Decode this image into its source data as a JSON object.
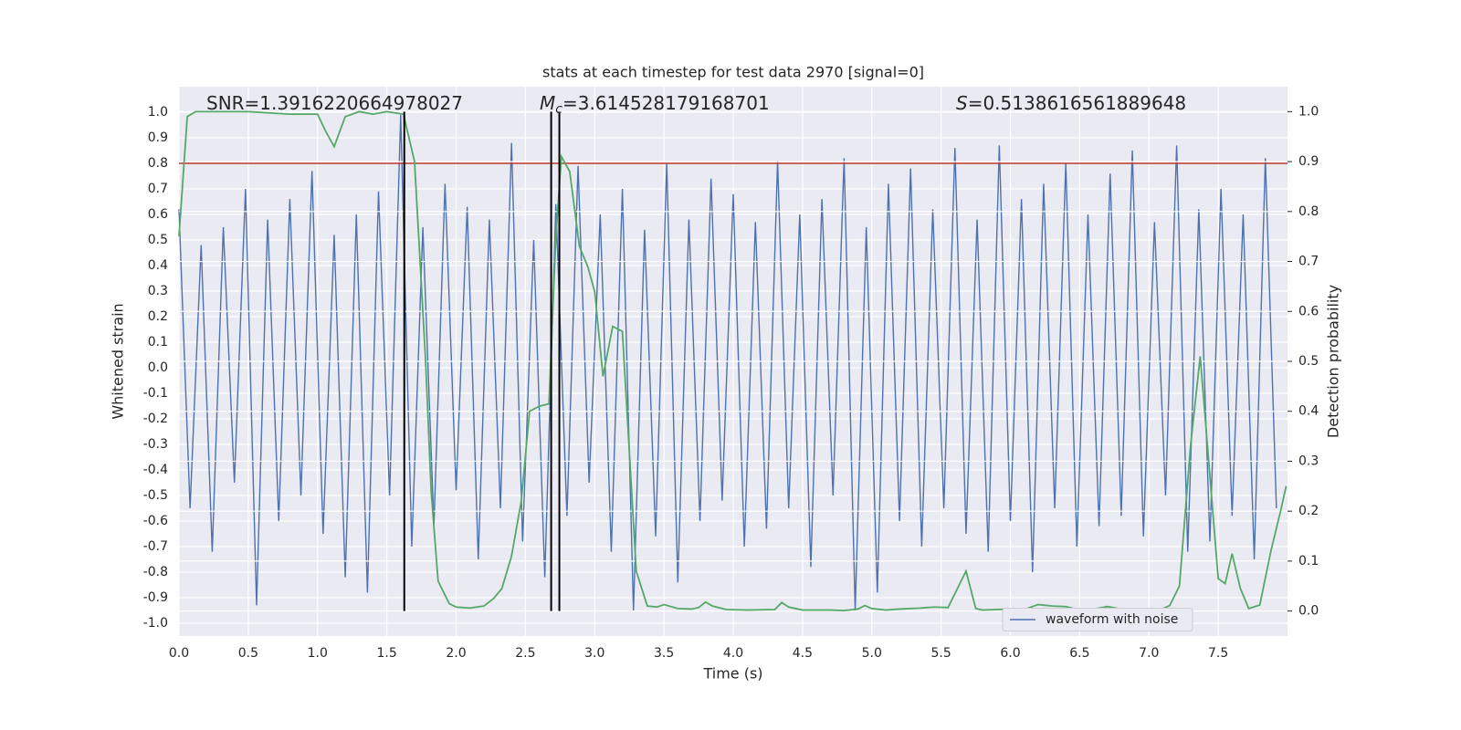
{
  "chart_data": {
    "type": "line",
    "title": "stats at each timestep for test data 2970 [signal=0]",
    "x_label": "Time (s)",
    "y_label": "Whitened strain",
    "y2_label": "Detection probability",
    "xlim": [
      0,
      8
    ],
    "ylim": [
      -1.05,
      1.1
    ],
    "y2lim": [
      -0.05,
      1.05
    ],
    "xticks": [
      {
        "value": 0,
        "label": "0.0"
      },
      0.5,
      {
        "value": 1,
        "label": "1.0"
      },
      1.5,
      {
        "value": 2,
        "label": "2.0"
      },
      2.5,
      {
        "value": 3,
        "label": "3.0"
      },
      3.5,
      {
        "value": 4,
        "label": "4.0"
      },
      4.5,
      {
        "value": 5,
        "label": "5.0"
      },
      5.5,
      {
        "value": 6,
        "label": "6.0"
      },
      6.5,
      {
        "value": 7,
        "label": "7.0"
      },
      7.5
    ],
    "yticks": [
      {
        "value": -1,
        "label": "-1.0"
      },
      -0.9,
      -0.8,
      -0.7,
      -0.6,
      -0.5,
      -0.4,
      -0.3,
      -0.2,
      -0.1,
      {
        "value": 0,
        "label": "0.0"
      },
      0.1,
      0.2,
      0.3,
      0.4,
      0.5,
      0.6,
      0.7,
      0.8,
      0.9,
      {
        "value": 1,
        "label": "1.0"
      }
    ],
    "y2ticks": [
      {
        "value": 0,
        "label": "0.0"
      },
      0.1,
      0.2,
      0.3,
      0.4,
      0.5,
      0.6,
      0.7,
      0.8,
      0.9,
      {
        "value": 1,
        "label": "1.0"
      }
    ],
    "grid": true,
    "legend": "lower right",
    "series": [
      {
        "name": "waveform with noise",
        "color": "#4c72b0",
        "x": [
          0,
          0.08,
          0.16,
          0.24,
          0.32,
          0.4,
          0.48,
          0.56,
          0.64,
          0.72,
          0.8,
          0.88,
          0.96,
          1.04,
          1.12,
          1.2,
          1.28,
          1.36,
          1.44,
          1.52,
          1.6,
          1.68,
          1.76,
          1.84,
          1.92,
          2,
          2.08,
          2.16,
          2.24,
          2.32,
          2.4,
          2.48,
          2.56,
          2.64,
          2.72,
          2.8,
          2.88,
          2.96,
          3.04,
          3.12,
          3.2,
          3.28,
          3.36,
          3.44,
          3.52,
          3.6,
          3.68,
          3.76,
          3.84,
          3.92,
          4,
          4.08,
          4.16,
          4.24,
          4.32,
          4.4,
          4.48,
          4.56,
          4.64,
          4.72,
          4.8,
          4.88,
          4.96,
          5.04,
          5.12,
          5.2,
          5.28,
          5.36,
          5.44,
          5.52,
          5.6,
          5.68,
          5.76,
          5.84,
          5.92,
          6,
          6.08,
          6.16,
          6.24,
          6.32,
          6.4,
          6.48,
          6.56,
          6.64,
          6.72,
          6.8,
          6.88,
          6.96,
          7.04,
          7.12,
          7.2,
          7.28,
          7.36,
          7.44,
          7.52,
          7.6,
          7.68,
          7.76,
          7.84,
          7.92
        ],
        "values": [
          0.62,
          -0.55,
          0.48,
          -0.72,
          0.55,
          -0.45,
          0.7,
          -0.93,
          0.58,
          -0.6,
          0.66,
          -0.5,
          0.77,
          -0.65,
          0.52,
          -0.82,
          0.6,
          -0.88,
          0.69,
          -0.5,
          0.99,
          -0.7,
          0.55,
          -0.62,
          0.72,
          -0.48,
          0.63,
          -0.75,
          0.58,
          -0.55,
          0.88,
          -0.68,
          0.5,
          -0.82,
          0.64,
          -0.58,
          0.79,
          -0.45,
          0.6,
          -0.72,
          0.7,
          -0.95,
          0.54,
          -0.66,
          0.8,
          -0.84,
          0.58,
          -0.6,
          0.74,
          -0.52,
          0.68,
          -0.7,
          0.57,
          -0.63,
          0.81,
          -0.55,
          0.6,
          -0.78,
          0.66,
          -0.5,
          0.82,
          -0.95,
          0.55,
          -0.88,
          0.72,
          -0.6,
          0.78,
          -0.7,
          0.62,
          -0.55,
          0.86,
          -0.65,
          0.58,
          -0.72,
          0.87,
          -0.6,
          0.66,
          -0.8,
          0.72,
          -0.55,
          0.8,
          -0.7,
          0.6,
          -0.62,
          0.76,
          -0.58,
          0.85,
          -0.66,
          0.57,
          -0.5,
          0.87,
          -0.72,
          0.62,
          -0.68,
          0.7,
          -0.58,
          0.6,
          -0.75,
          0.82,
          -0.55
        ]
      },
      {
        "color": "#55a868",
        "axis": "y2",
        "x": [
          0,
          0.06,
          0.12,
          0.5,
          0.8,
          1.0,
          1.06,
          1.12,
          1.2,
          1.3,
          1.4,
          1.5,
          1.62,
          1.7,
          1.78,
          1.82,
          1.87,
          1.95,
          2.0,
          2.1,
          2.2,
          2.27,
          2.33,
          2.4,
          2.47,
          2.53,
          2.6,
          2.67,
          2.72,
          2.76,
          2.82,
          2.89,
          2.95,
          3.0,
          3.06,
          3.13,
          3.2,
          3.3,
          3.38,
          3.45,
          3.5,
          3.6,
          3.7,
          3.75,
          3.8,
          3.85,
          3.95,
          4.1,
          4.3,
          4.35,
          4.4,
          4.5,
          4.7,
          4.8,
          4.9,
          4.95,
          5.0,
          5.1,
          5.2,
          5.35,
          5.45,
          5.55,
          5.6,
          5.68,
          5.75,
          5.8,
          5.9,
          6.0,
          6.1,
          6.2,
          6.3,
          6.4,
          6.5,
          6.6,
          6.7,
          6.8,
          6.9,
          7.0,
          7.07,
          7.15,
          7.22,
          7.3,
          7.37,
          7.44,
          7.5,
          7.55,
          7.6,
          7.66,
          7.72,
          7.8,
          7.88,
          7.95,
          7.99
        ],
        "values": [
          0.75,
          0.99,
          1.0,
          1.0,
          0.995,
          0.995,
          0.96,
          0.93,
          0.99,
          1.0,
          0.995,
          1.0,
          0.995,
          0.9,
          0.5,
          0.24,
          0.06,
          0.015,
          0.008,
          0.006,
          0.01,
          0.025,
          0.045,
          0.11,
          0.22,
          0.4,
          0.41,
          0.415,
          0.75,
          0.91,
          0.88,
          0.73,
          0.69,
          0.64,
          0.47,
          0.57,
          0.56,
          0.08,
          0.01,
          0.008,
          0.013,
          0.005,
          0.004,
          0.007,
          0.018,
          0.01,
          0.003,
          0.002,
          0.003,
          0.017,
          0.008,
          0.002,
          0.002,
          0.001,
          0.004,
          0.011,
          0.005,
          0.002,
          0.004,
          0.006,
          0.008,
          0.007,
          0.035,
          0.08,
          0.005,
          0.002,
          0.003,
          0.004,
          0.003,
          0.013,
          0.01,
          0.009,
          0.002,
          0.004,
          0.009,
          0.004,
          0.003,
          0.005,
          0.001,
          0.011,
          0.05,
          0.33,
          0.51,
          0.27,
          0.065,
          0.055,
          0.115,
          0.045,
          0.005,
          0.012,
          0.12,
          0.2,
          0.25
        ]
      }
    ],
    "threshold": {
      "value": 0.8,
      "color": "#c0392b"
    },
    "vlines": {
      "x": [
        1.626,
        2.686,
        2.745
      ],
      "color": "#000000"
    },
    "annotations": [
      {
        "text": "SNR=1.3916220664978027"
      },
      {
        "symbol": "M",
        "subscript": "c",
        "text": "=3.614528179168701"
      },
      {
        "symbol": "S",
        "text": "=0.5138616561889648"
      }
    ]
  }
}
